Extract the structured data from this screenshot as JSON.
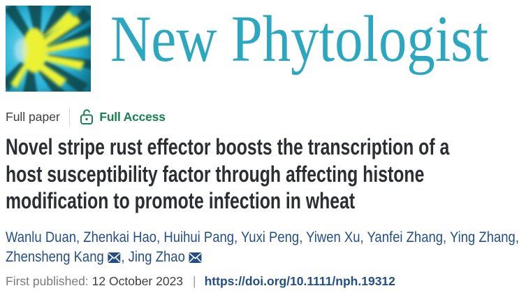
{
  "journal": {
    "name": "New Phytologist",
    "brand_color": "#2ba7c0",
    "logo": {
      "icon": "starburst-logo-icon",
      "colors": {
        "cyan": "#2cb9dc",
        "yellow": "#edf22f",
        "dark_ray": "#07484d"
      }
    }
  },
  "meta": {
    "article_type": "Full paper",
    "access_label": "Full Access",
    "access_color": "#17814f",
    "access_icon": "lock-open-icon"
  },
  "title": {
    "lines": [
      "Novel stripe rust effector boosts the transcription of a",
      "host susceptibility factor through affecting histone",
      "modification to promote infection in wheat"
    ]
  },
  "authors": {
    "separator": ", ",
    "link_color": "#234e87",
    "email_icon": "envelope-icon",
    "list": [
      {
        "name": "Wanlu Duan"
      },
      {
        "name": "Zhenkai Hao"
      },
      {
        "name": "Huihui Pang"
      },
      {
        "name": "Yuxi Peng"
      },
      {
        "name": "Yiwen Xu"
      },
      {
        "name": "Yanfei Zhang"
      },
      {
        "name": "Ying Zhang",
        "break_after": true
      },
      {
        "name": "Zhensheng Kang",
        "email": true
      },
      {
        "name": "Jing Zhao",
        "email": true
      }
    ]
  },
  "published": {
    "label": "First published:",
    "date": "12 October 2023",
    "divider": "|",
    "doi": "https://doi.org/10.1111/nph.19312"
  }
}
